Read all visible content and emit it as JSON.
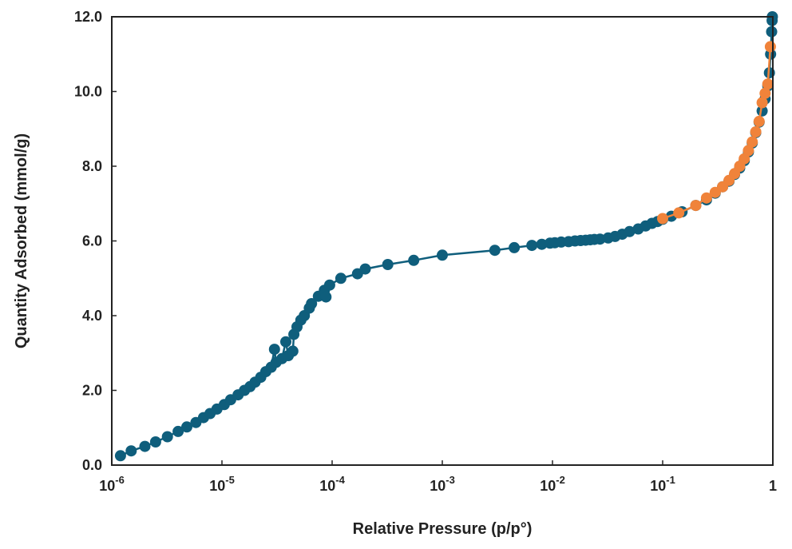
{
  "chart_data": {
    "type": "scatter",
    "title": "",
    "xlabel": "Relative Pressure (p/p°)",
    "ylabel": "Quantity Adsorbed (mmol/g)",
    "x_scale": "log",
    "xlim": [
      1e-06,
      1
    ],
    "ylim": [
      0,
      12
    ],
    "x_ticks": [
      {
        "base": "10",
        "exp": "-6"
      },
      {
        "base": "10",
        "exp": "-5"
      },
      {
        "base": "10",
        "exp": "-4"
      },
      {
        "base": "10",
        "exp": "-3"
      },
      {
        "base": "10",
        "exp": "-2"
      },
      {
        "base": "10",
        "exp": "-1"
      },
      {
        "base": "1",
        "exp": ""
      }
    ],
    "y_ticks": [
      "0.0",
      "2.0",
      "4.0",
      "6.0",
      "8.0",
      "10.0",
      "12.0"
    ],
    "grid": false,
    "legend": "none",
    "series": [
      {
        "color": "#0f5e7c",
        "line": true,
        "points": [
          [
            1.2e-06,
            0.25
          ],
          [
            1.5e-06,
            0.38
          ],
          [
            2e-06,
            0.5
          ],
          [
            2.5e-06,
            0.62
          ],
          [
            3.2e-06,
            0.76
          ],
          [
            4e-06,
            0.9
          ],
          [
            4.8e-06,
            1.02
          ],
          [
            5.8e-06,
            1.14
          ],
          [
            6.8e-06,
            1.27
          ],
          [
            7.8e-06,
            1.38
          ],
          [
            9e-06,
            1.5
          ],
          [
            1.05e-05,
            1.62
          ],
          [
            1.2e-05,
            1.75
          ],
          [
            1.4e-05,
            1.88
          ],
          [
            1.6e-05,
            2.0
          ],
          [
            1.8e-05,
            2.1
          ],
          [
            2e-05,
            2.22
          ],
          [
            2.25e-05,
            2.35
          ],
          [
            2.5e-05,
            2.5
          ],
          [
            2.8e-05,
            2.62
          ],
          [
            3.1e-05,
            2.75
          ],
          [
            3.5e-05,
            2.85
          ],
          [
            4e-05,
            2.93
          ],
          [
            4.4e-05,
            3.05
          ],
          [
            3e-05,
            3.1
          ],
          [
            3.8e-05,
            3.3
          ],
          [
            4.5e-05,
            3.5
          ],
          [
            4.8e-05,
            3.7
          ],
          [
            5.2e-05,
            3.88
          ],
          [
            5.6e-05,
            4.0
          ],
          [
            6.2e-05,
            4.2
          ],
          [
            6.5e-05,
            4.32
          ],
          [
            7.5e-05,
            4.52
          ],
          [
            8.5e-05,
            4.68
          ],
          [
            9.5e-05,
            4.82
          ],
          [
            8.8e-05,
            4.5
          ],
          [
            0.00012,
            5.0
          ],
          [
            0.00017,
            5.12
          ],
          [
            0.0002,
            5.25
          ],
          [
            0.00032,
            5.37
          ],
          [
            0.00055,
            5.48
          ],
          [
            0.001,
            5.62
          ],
          [
            0.003,
            5.75
          ],
          [
            0.0045,
            5.82
          ],
          [
            0.0065,
            5.88
          ],
          [
            0.008,
            5.91
          ],
          [
            0.0095,
            5.94
          ],
          [
            0.0105,
            5.95
          ],
          [
            0.012,
            5.97
          ],
          [
            0.014,
            5.98
          ],
          [
            0.016,
            6.0
          ],
          [
            0.018,
            6.01
          ],
          [
            0.02,
            6.02
          ],
          [
            0.022,
            6.03
          ],
          [
            0.024,
            6.04
          ],
          [
            0.027,
            6.05
          ],
          [
            0.032,
            6.08
          ],
          [
            0.037,
            6.12
          ],
          [
            0.043,
            6.18
          ],
          [
            0.05,
            6.25
          ],
          [
            0.06,
            6.32
          ],
          [
            0.07,
            6.4
          ],
          [
            0.08,
            6.47
          ],
          [
            0.09,
            6.52
          ],
          [
            0.1,
            6.58
          ],
          [
            0.12,
            6.66
          ],
          [
            0.15,
            6.78
          ],
          [
            0.2,
            6.95
          ],
          [
            0.25,
            7.1
          ],
          [
            0.3,
            7.28
          ],
          [
            0.35,
            7.45
          ],
          [
            0.4,
            7.6
          ],
          [
            0.45,
            7.78
          ],
          [
            0.5,
            7.95
          ],
          [
            0.55,
            8.15
          ],
          [
            0.6,
            8.38
          ],
          [
            0.65,
            8.62
          ],
          [
            0.7,
            8.9
          ],
          [
            0.75,
            9.18
          ],
          [
            0.8,
            9.48
          ],
          [
            0.85,
            9.8
          ],
          [
            0.9,
            10.15
          ],
          [
            0.93,
            10.5
          ],
          [
            0.955,
            11.0
          ],
          [
            0.975,
            11.6
          ],
          [
            0.985,
            11.9
          ],
          [
            0.99,
            12.0
          ]
        ]
      },
      {
        "color": "#f0833a",
        "line": true,
        "points": [
          [
            0.1,
            6.6
          ],
          [
            0.14,
            6.75
          ],
          [
            0.2,
            6.95
          ],
          [
            0.25,
            7.15
          ],
          [
            0.3,
            7.3
          ],
          [
            0.35,
            7.45
          ],
          [
            0.4,
            7.62
          ],
          [
            0.45,
            7.8
          ],
          [
            0.5,
            8.0
          ],
          [
            0.55,
            8.2
          ],
          [
            0.6,
            8.42
          ],
          [
            0.65,
            8.65
          ],
          [
            0.7,
            8.92
          ],
          [
            0.75,
            9.2
          ],
          [
            0.8,
            9.7
          ],
          [
            0.85,
            9.95
          ],
          [
            0.9,
            10.2
          ],
          [
            0.95,
            11.2
          ]
        ]
      }
    ]
  }
}
